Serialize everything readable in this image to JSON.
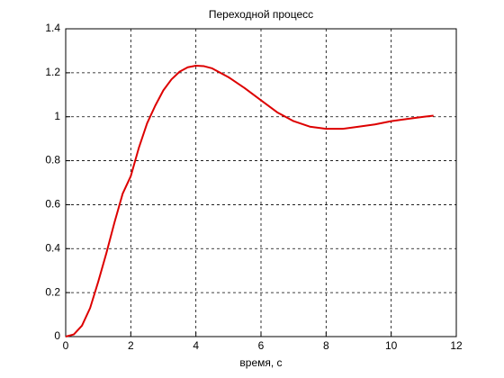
{
  "chart_data": {
    "type": "line",
    "title": "Переходной процесс",
    "xlabel": "время, с",
    "x": [
      0,
      0.25,
      0.5,
      0.75,
      1.0,
      1.25,
      1.5,
      1.75,
      2.0,
      2.25,
      2.5,
      2.75,
      3.0,
      3.25,
      3.5,
      3.75,
      4.0,
      4.25,
      4.5,
      5.0,
      5.5,
      6.0,
      6.5,
      7.0,
      7.5,
      8.0,
      8.5,
      9.0,
      9.5,
      10.0,
      10.5,
      11.0,
      11.3
    ],
    "values": [
      0,
      0.01,
      0.05,
      0.13,
      0.25,
      0.38,
      0.52,
      0.65,
      0.73,
      0.86,
      0.97,
      1.05,
      1.12,
      1.17,
      1.205,
      1.225,
      1.232,
      1.23,
      1.22,
      1.18,
      1.13,
      1.075,
      1.02,
      0.98,
      0.955,
      0.945,
      0.945,
      0.955,
      0.965,
      0.98,
      0.99,
      1.0,
      1.005
    ],
    "color": "#dd0000",
    "xlim": [
      0,
      12
    ],
    "xticks": [
      0,
      2,
      4,
      6,
      8,
      10,
      12
    ],
    "ylim": [
      0,
      1.4
    ],
    "yticks": [
      0,
      0.2,
      0.4,
      0.6,
      0.8,
      1,
      1.2,
      1.4
    ],
    "grid": true
  }
}
